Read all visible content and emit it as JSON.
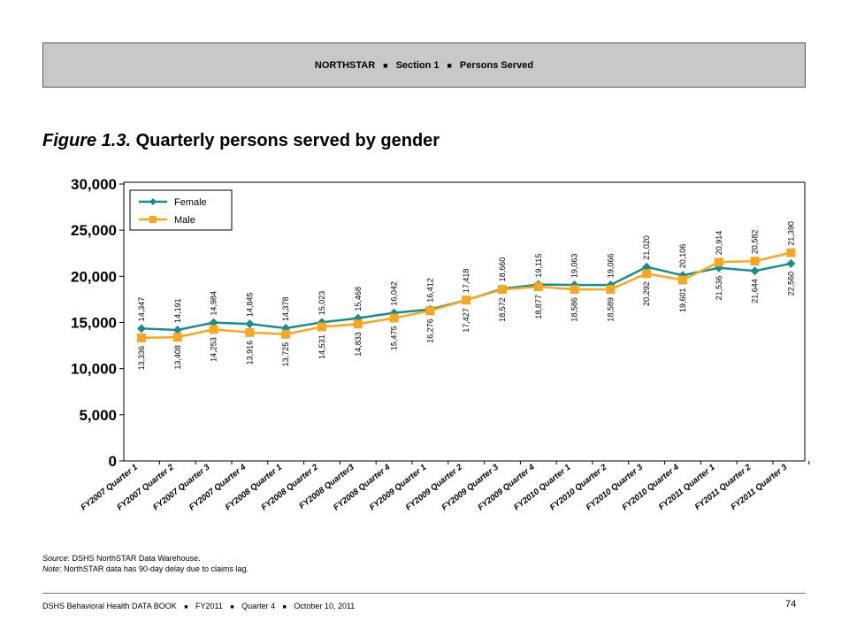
{
  "header": {
    "part1": "NORTHSTAR",
    "part2": "Section 1",
    "part3": "Persons Served",
    "separator": "■"
  },
  "figure": {
    "number": "Figure 1.3.",
    "title": "Quarterly persons served by gender"
  },
  "chart_data": {
    "type": "line",
    "categories": [
      "FY2007 Quarter 1",
      "FY2007 Quarter 2",
      "FY2007 Quarter 3",
      "FY2007 Quarter 4",
      "FY2008 Quarter 1",
      "FY2008 Quarter 2",
      "FY2008 Quarter3",
      "FY2008 Quarter 4",
      "FY2009 Quarter 1",
      "FY2009 Quarter 2",
      "FY2009 Quarter 3",
      "FY2009 Quarter 4",
      "FY2010 Quarter 1",
      "FY2010 Quarter 2",
      "FY2010 Quarter 3",
      "FY2010 Quarter 4",
      "FY2011 Quarter 1",
      "FY2011 Quarter 2",
      "FY2011 Quarter 3"
    ],
    "series": [
      {
        "name": "Female",
        "color": "#1a8c8c",
        "marker": "diamond",
        "values": [
          14347,
          14191,
          14984,
          14845,
          14378,
          15023,
          15468,
          16042,
          16412,
          17418,
          18660,
          19115,
          19063,
          19066,
          21020,
          20106,
          20914,
          20582,
          21390
        ],
        "labels": [
          "14,347",
          "14,191",
          "14,984",
          "14,845",
          "14,378",
          "15,023",
          "15,468",
          "16,042",
          "16,412",
          "17,418",
          "18,660",
          "19,115",
          "19,063",
          "19,066",
          "21,020",
          "20,106",
          "20,914",
          "20,582",
          "21,390"
        ]
      },
      {
        "name": "Male",
        "color": "#f5a623",
        "marker": "square",
        "values": [
          13336,
          13408,
          14253,
          13916,
          13725,
          14531,
          14833,
          15475,
          16276,
          17427,
          18572,
          18877,
          18586,
          18589,
          20292,
          19601,
          21536,
          21644,
          22560
        ],
        "labels": [
          "13,336",
          "13,408",
          "14,253",
          "13,916",
          "13,725",
          "14,531",
          "14,833",
          "15,475",
          "16,276",
          "17,427",
          "18,572",
          "18,877",
          "18,586",
          "18,589",
          "20,292",
          "19,601",
          "21,536",
          "21,644",
          "22,560"
        ]
      }
    ],
    "y_ticks": [
      "0",
      "5,000",
      "10,000",
      "15,000",
      "20,000",
      "25,000",
      "30,000"
    ],
    "ylim": [
      0,
      30000
    ],
    "xlabel": "",
    "ylabel": "",
    "legend_position": "top-left",
    "grid": false
  },
  "notes": {
    "source_label": "Source",
    "source_text": ": DSHS NorthSTAR Data Warehouse.",
    "note_label": "Note",
    "note_text": ": NorthSTAR data has 90-day delay due to claims lag."
  },
  "footer": {
    "part1": "DSHS Behavioral Health DATA BOOK",
    "part2": "FY2011",
    "part3": "Quarter 4",
    "part4": "October 10, 2011",
    "separator": "■",
    "page_number": "74"
  }
}
